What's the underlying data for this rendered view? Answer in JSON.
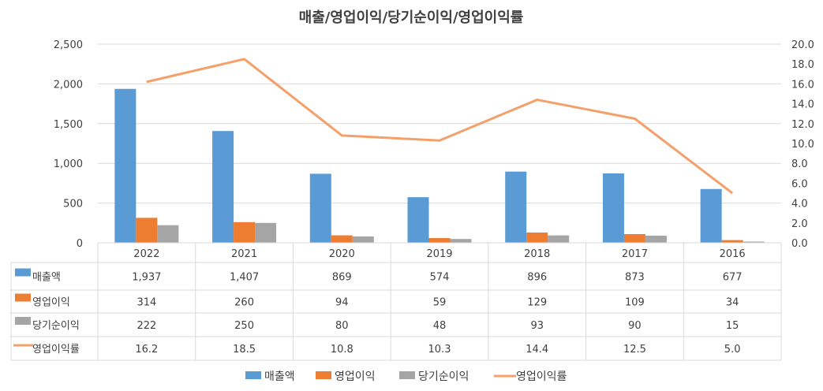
{
  "chart_data": {
    "type": "bar",
    "title": "매출/영업이익/당기순이익/영업이익률",
    "categories": [
      "2022",
      "2021",
      "2020",
      "2019",
      "2018",
      "2017",
      "2016"
    ],
    "ylim": [
      0,
      2500
    ],
    "y_ticks": [
      "0",
      "500",
      "1,000",
      "1,500",
      "2,000",
      "2,500"
    ],
    "y2lim": [
      0,
      20
    ],
    "y2_ticks": [
      "0.0",
      "2.0",
      "4.0",
      "6.0",
      "8.0",
      "10.0",
      "12.0",
      "14.0",
      "16.0",
      "18.0",
      "20.0"
    ],
    "grid": true,
    "legend_position": "bottom",
    "series": [
      {
        "name": "매출액",
        "kind": "bar",
        "axis": "left",
        "color": "#5B9BD5",
        "values": [
          1937,
          1407,
          869,
          574,
          896,
          873,
          677
        ],
        "labels": [
          "1,937",
          "1,407",
          "869",
          "574",
          "896",
          "873",
          "677"
        ]
      },
      {
        "name": "영업이익",
        "kind": "bar",
        "axis": "left",
        "color": "#ED7D31",
        "values": [
          314,
          260,
          94,
          59,
          129,
          109,
          34
        ],
        "labels": [
          "314",
          "260",
          "94",
          "59",
          "129",
          "109",
          "34"
        ]
      },
      {
        "name": "당기순이익",
        "kind": "bar",
        "axis": "left",
        "color": "#A5A5A5",
        "values": [
          222,
          250,
          80,
          48,
          93,
          90,
          15
        ],
        "labels": [
          "222",
          "250",
          "80",
          "48",
          "93",
          "90",
          "15"
        ]
      },
      {
        "name": "영업이익률",
        "kind": "line",
        "axis": "right",
        "color": "#F4A06A",
        "values": [
          16.2,
          18.5,
          10.8,
          10.3,
          14.4,
          12.5,
          5.0
        ],
        "labels": [
          "16.2",
          "18.5",
          "10.8",
          "10.3",
          "14.4",
          "12.5",
          "5.0"
        ]
      }
    ]
  }
}
